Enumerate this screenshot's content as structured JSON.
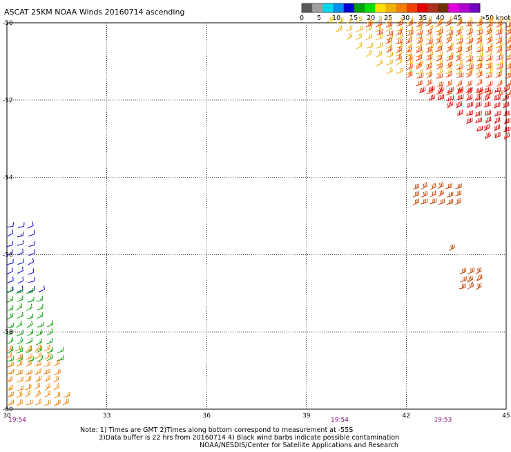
{
  "title": "ASCAT 25KM NOAA Winds 20160714 ascending",
  "legend": {
    "colors": [
      "#5a5a5a",
      "#a0a0a0",
      "#00d8e8",
      "#0090f0",
      "#0000d0",
      "#00a000",
      "#00e000",
      "#ffe000",
      "#f0b000",
      "#f08000",
      "#f04000",
      "#e00000",
      "#b03020",
      "#703000",
      "#e000e0",
      "#b000d0",
      "#7000c0"
    ],
    "labels": [
      "0",
      "5",
      "10",
      "15",
      "20",
      "25",
      "30",
      "35",
      "40",
      "45",
      ">50 knots"
    ]
  },
  "chart_data": {
    "type": "wind-barb map",
    "title": "ASCAT 25KM NOAA Winds 20160714 ascending",
    "x_ticks": [
      "30",
      "33",
      "36",
      "39",
      "42",
      "45"
    ],
    "y_ticks": [
      "-50",
      "-52",
      "-54",
      "-56",
      "-58",
      "-60"
    ],
    "xlim": [
      30,
      45
    ],
    "ylim": [
      -60,
      -50
    ],
    "grid": true,
    "time_labels": [
      {
        "lon": 30.0,
        "text": "19:54"
      },
      {
        "lon": 40.0,
        "text": "19:54"
      },
      {
        "lon": 43.1,
        "text": "19:53"
      }
    ],
    "speed_bins_knots": [
      0,
      5,
      10,
      15,
      20,
      25,
      30,
      35,
      40,
      45,
      50
    ],
    "swaths": [
      {
        "region": "west swath, upper",
        "lon_range": [
          30.0,
          30.9
        ],
        "lat_range": [
          -57.0,
          -55.3
        ],
        "wind_knots": [
          10,
          15
        ],
        "color": "#0000d0"
      },
      {
        "region": "west swath, middle",
        "lon_range": [
          30.0,
          31.4
        ],
        "lat_range": [
          -58.8,
          -57.0
        ],
        "wind_knots": [
          15,
          20
        ],
        "color": "#00a000"
      },
      {
        "region": "west swath, lower",
        "lon_range": [
          30.0,
          31.8
        ],
        "lat_range": [
          -60.0,
          -58.5
        ],
        "wind_knots": [
          20,
          30
        ],
        "color": "#f08000"
      },
      {
        "region": "north-east swath, west edge",
        "lon_range": [
          39.6,
          41.0
        ],
        "lat_range": [
          -51.0,
          -50.0
        ],
        "wind_knots": [
          20,
          25
        ],
        "color": "#f0b000"
      },
      {
        "region": "north-east swath",
        "lon_range": [
          40.0,
          45.0
        ],
        "lat_range": [
          -51.5,
          -50.0
        ],
        "wind_knots": [
          25,
          35
        ],
        "color": "#f04000"
      },
      {
        "region": "north-east swath, south",
        "lon_range": [
          42.5,
          45.0
        ],
        "lat_range": [
          -53.2,
          -51.5
        ],
        "wind_knots": [
          35,
          45
        ],
        "color": "#e00000"
      },
      {
        "region": "isolated cells",
        "lon_range": [
          42.2,
          44.4
        ],
        "lat_range": [
          -57.0,
          -54.2
        ],
        "wind_knots": [
          30,
          35
        ],
        "color": "#c04000"
      }
    ]
  },
  "footer": {
    "line1": "Note: 1) Times are GMT 2)Times along bottom correspond to measurement at -55S",
    "line2": "3)Data buffer is 22 hrs from 20160714 4) Black wind barbs indicate possible contamination",
    "line3": "NOAA/NESDIS/Center for Satellite Applications and Research"
  }
}
